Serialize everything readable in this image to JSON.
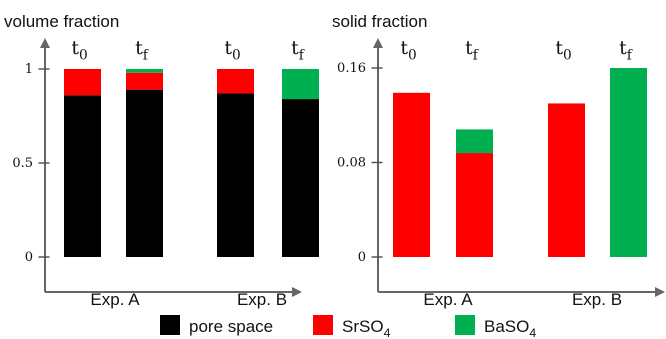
{
  "chart_data": [
    {
      "type": "bar",
      "stacked": true,
      "title": "volume fraction",
      "ylim": [
        0,
        1.1
      ],
      "yticks": [
        "0",
        "0.5",
        "1"
      ],
      "ytick_values": [
        0,
        0.5,
        1
      ],
      "groups": [
        "Exp. A",
        "Exp. B"
      ],
      "bar_labels": [
        {
          "base": "t",
          "sub": "0"
        },
        {
          "base": "t",
          "sub": "f"
        },
        {
          "base": "t",
          "sub": "0"
        },
        {
          "base": "t",
          "sub": "f"
        }
      ],
      "series": [
        {
          "name": "pore space",
          "color": "#000000",
          "values": [
            0.86,
            0.89,
            0.87,
            0.84
          ]
        },
        {
          "name": "SrSO4",
          "color": "#ff0000",
          "values": [
            0.14,
            0.09,
            0.13,
            0.0
          ]
        },
        {
          "name": "BaSO4",
          "color": "#00b050",
          "values": [
            0.0,
            0.02,
            0.0,
            0.16
          ]
        }
      ]
    },
    {
      "type": "bar",
      "stacked": true,
      "title": "solid fraction",
      "ylim": [
        0,
        0.17
      ],
      "yticks": [
        "0",
        "0.08",
        "0.16"
      ],
      "ytick_values": [
        0,
        0.08,
        0.16
      ],
      "groups": [
        "Exp. A",
        "Exp. B"
      ],
      "bar_labels": [
        {
          "base": "t",
          "sub": "0"
        },
        {
          "base": "t",
          "sub": "f"
        },
        {
          "base": "t",
          "sub": "0"
        },
        {
          "base": "t",
          "sub": "f"
        }
      ],
      "series": [
        {
          "name": "SrSO4",
          "color": "#ff0000",
          "values": [
            0.139,
            0.088,
            0.13,
            0.0
          ]
        },
        {
          "name": "BaSO4",
          "color": "#00b050",
          "values": [
            0.0,
            0.02,
            0.0,
            0.16
          ]
        }
      ]
    }
  ],
  "legend": {
    "position": "bottom",
    "items": [
      {
        "label": "pore space",
        "color": "#000000"
      },
      {
        "label": "SrSO",
        "sub": "4",
        "color": "#ff0000"
      },
      {
        "label": "BaSO",
        "sub": "4",
        "color": "#00b050"
      }
    ]
  }
}
